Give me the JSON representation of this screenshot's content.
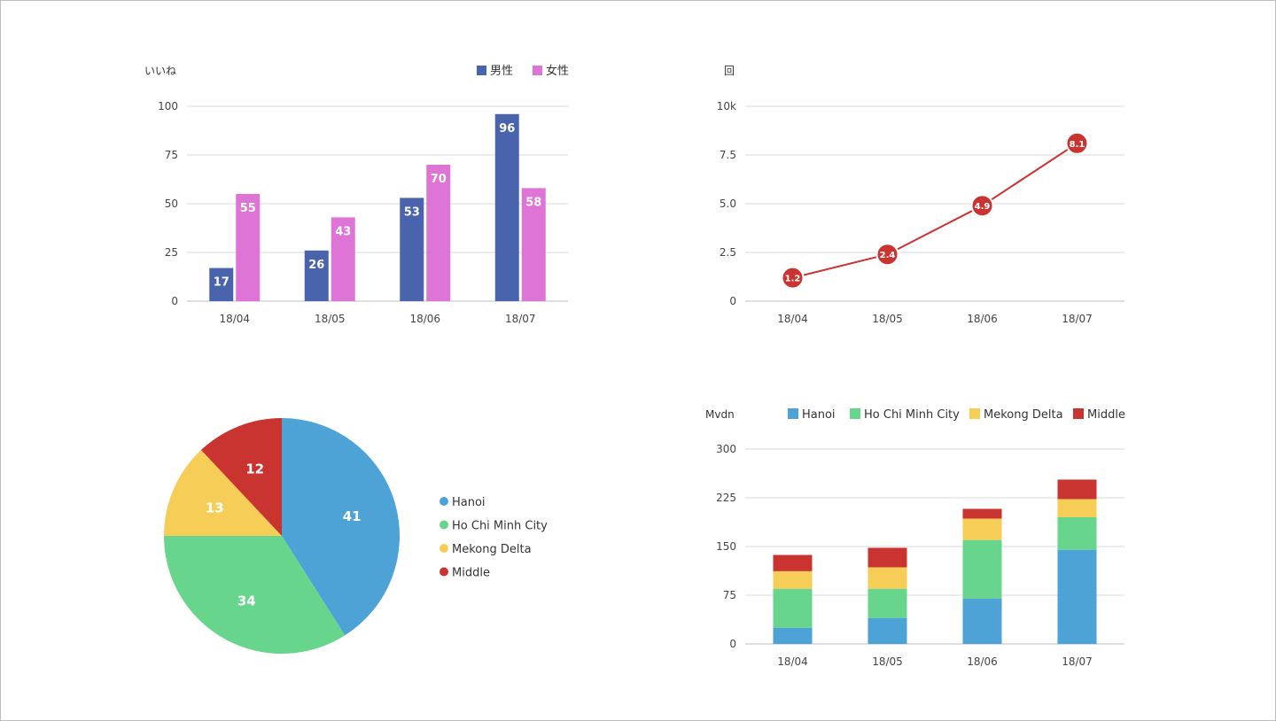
{
  "chart_data": [
    {
      "type": "bar",
      "y_unit_label": "いいね",
      "categories": [
        "18/04",
        "18/05",
        "18/06",
        "18/07"
      ],
      "series": [
        {
          "name": "男性",
          "color": "#4a63ad",
          "values": [
            17,
            26,
            53,
            96
          ]
        },
        {
          "name": "女性",
          "color": "#dd74d6",
          "values": [
            55,
            43,
            70,
            58
          ]
        }
      ],
      "ylim": [
        0,
        100
      ],
      "y_ticks": [
        "0",
        "25",
        "50",
        "75",
        "100"
      ],
      "data_labels": true,
      "grid": true,
      "legend_position": "top-right"
    },
    {
      "type": "line",
      "y_unit_label": "回",
      "categories": [
        "18/04",
        "18/05",
        "18/06",
        "18/07"
      ],
      "series": [
        {
          "color": "#c93330",
          "values": [
            1.2,
            2.4,
            4.9,
            8.1
          ],
          "point_labels": [
            "1.2",
            "2.4",
            "4.9",
            "8.1"
          ]
        }
      ],
      "ylim": [
        0,
        10
      ],
      "y_ticks": [
        "0",
        "2.5",
        "5.0",
        "7.5",
        "10k"
      ],
      "grid": true
    },
    {
      "type": "pie",
      "slices": [
        {
          "name": "Hanoi",
          "value": 41,
          "color": "#4da2d6"
        },
        {
          "name": "Ho Chi Minh City",
          "value": 34,
          "color": "#67d58c"
        },
        {
          "name": "Mekong Delta",
          "value": 13,
          "color": "#f6cd57"
        },
        {
          "name": "Middle",
          "value": 12,
          "color": "#c93330"
        }
      ],
      "legend_position": "right"
    },
    {
      "type": "bar",
      "stacked": true,
      "y_unit_label": "Mvdn",
      "categories": [
        "18/04",
        "18/05",
        "18/06",
        "18/07"
      ],
      "series": [
        {
          "name": "Hanoi",
          "color": "#4da2d6",
          "values": [
            25,
            40,
            70,
            145
          ]
        },
        {
          "name": "Ho Chi Minh City",
          "color": "#67d58c",
          "values": [
            60,
            45,
            90,
            50
          ]
        },
        {
          "name": "Mekong Delta",
          "color": "#f6cd57",
          "values": [
            27,
            33,
            33,
            28
          ]
        },
        {
          "name": "Middle",
          "color": "#c93330",
          "values": [
            25,
            30,
            15,
            30
          ]
        }
      ],
      "ylim": [
        0,
        300
      ],
      "y_ticks": [
        "0",
        "75",
        "150",
        "225",
        "300"
      ],
      "grid": true,
      "legend_position": "top"
    }
  ]
}
